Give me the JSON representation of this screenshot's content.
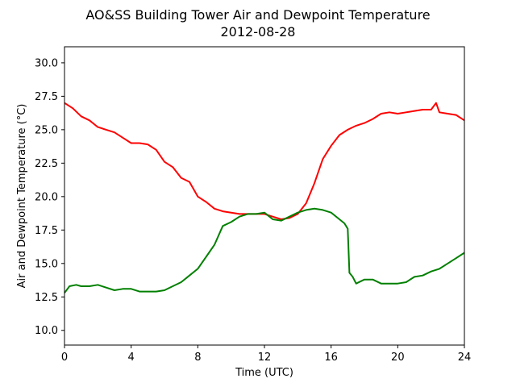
{
  "chart_data": {
    "type": "line",
    "title": "AO&SS Building Tower Air and Dewpoint Temperature",
    "subtitle": "2012-08-28",
    "xlabel": "Time (UTC)",
    "ylabel": "Air and Dewpoint Temperature (°C)",
    "xlim": [
      0,
      24
    ],
    "ylim": [
      8.9,
      31.2
    ],
    "xticks": [
      0,
      4,
      8,
      12,
      16,
      20,
      24
    ],
    "xtick_labels": [
      "0",
      "4",
      "8",
      "12",
      "16",
      "20",
      "24"
    ],
    "yticks": [
      10.0,
      12.5,
      15.0,
      17.5,
      20.0,
      22.5,
      25.0,
      27.5,
      30.0
    ],
    "ytick_labels": [
      "10.0",
      "12.5",
      "15.0",
      "17.5",
      "20.0",
      "22.5",
      "25.0",
      "27.5",
      "30.0"
    ],
    "grid": false,
    "series": [
      {
        "color": "#ff0000",
        "x": [
          0,
          0.5,
          1,
          1.5,
          2,
          2.5,
          3,
          3.5,
          4,
          4.5,
          5,
          5.5,
          6,
          6.5,
          7,
          7.5,
          8,
          8.5,
          9,
          9.5,
          10,
          10.5,
          11,
          11.5,
          12,
          12.5,
          13,
          13.5,
          14,
          14.5,
          15,
          15.5,
          16,
          16.5,
          17,
          17.5,
          18,
          18.5,
          19,
          19.5,
          20,
          20.5,
          21,
          21.5,
          22,
          22.3,
          22.5,
          23,
          23.5,
          24
        ],
        "y": [
          27.0,
          26.6,
          26.0,
          25.7,
          25.2,
          25.0,
          24.8,
          24.4,
          24.0,
          24.0,
          23.9,
          23.5,
          22.6,
          22.2,
          21.4,
          21.1,
          20.0,
          19.6,
          19.1,
          18.9,
          18.8,
          18.7,
          18.7,
          18.7,
          18.7,
          18.5,
          18.3,
          18.4,
          18.7,
          19.5,
          21.0,
          22.8,
          23.8,
          24.6,
          25.0,
          25.3,
          25.5,
          25.8,
          26.2,
          26.3,
          26.2,
          26.3,
          26.4,
          26.5,
          26.5,
          27.0,
          26.3,
          26.2,
          26.1,
          25.7
        ]
      },
      {
        "color": "#008000",
        "x": [
          0,
          0.3,
          0.7,
          1,
          1.5,
          2,
          2.5,
          3,
          3.5,
          4,
          4.5,
          5,
          5.5,
          6,
          6.5,
          7,
          7.5,
          8,
          8.5,
          9,
          9.5,
          10,
          10.5,
          11,
          11.5,
          12,
          12.5,
          13,
          13.5,
          14,
          14.5,
          15,
          15.5,
          16,
          16.5,
          16.8,
          17,
          17.1,
          17.3,
          17.5,
          18,
          18.5,
          19,
          19.5,
          20,
          20.5,
          21,
          21.5,
          22,
          22.5,
          23,
          23.5,
          24
        ],
        "y": [
          12.8,
          13.3,
          13.4,
          13.3,
          13.3,
          13.4,
          13.2,
          13.0,
          13.1,
          13.1,
          12.9,
          12.9,
          12.9,
          13.0,
          13.3,
          13.6,
          14.1,
          14.6,
          15.5,
          16.4,
          17.8,
          18.1,
          18.5,
          18.7,
          18.7,
          18.8,
          18.3,
          18.2,
          18.5,
          18.8,
          19.0,
          19.1,
          19.0,
          18.8,
          18.3,
          18.0,
          17.6,
          14.3,
          14.0,
          13.5,
          13.8,
          13.8,
          13.5,
          13.5,
          13.5,
          13.6,
          14.0,
          14.1,
          14.4,
          14.6,
          15.0,
          15.4,
          15.8
        ]
      }
    ]
  }
}
